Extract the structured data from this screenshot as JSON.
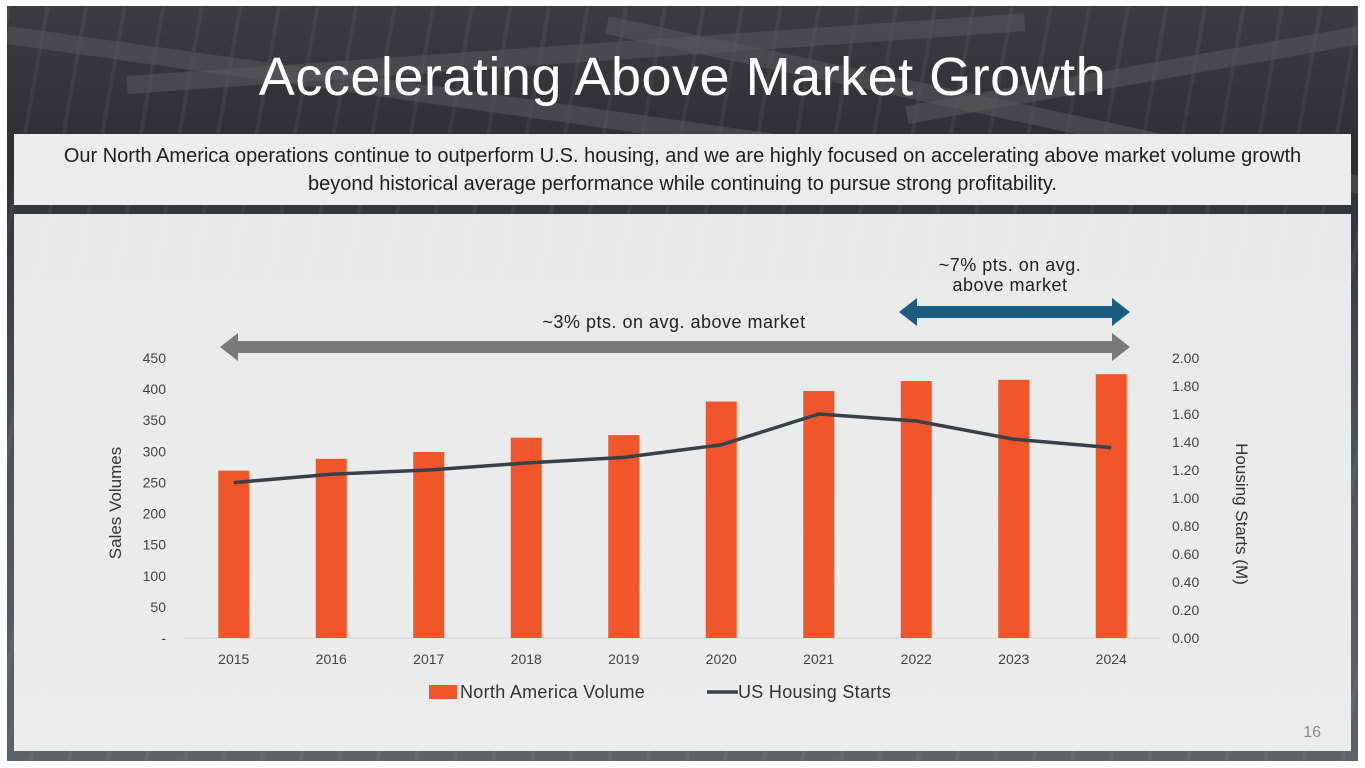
{
  "slide": {
    "title": "Accelerating Above Market Growth",
    "subtitle": "Our North America operations continue to outperform U.S. housing, and we are highly focused on accelerating above market volume growth beyond historical average performance while continuing to pursue strong profitability.",
    "page_number": "16"
  },
  "colors": {
    "bar": "#f0562a",
    "line": "#3a4049",
    "gray_arrow": "#7a7a7a",
    "blue_arrow": "#1a5d80"
  },
  "annotations": {
    "long_arrow_label": "~3% pts. on avg. above market",
    "short_arrow_label_line1": "~7% pts. on avg.",
    "short_arrow_label_line2": "above market"
  },
  "chart_data": {
    "type": "bar",
    "categories": [
      "2015",
      "2016",
      "2017",
      "2018",
      "2019",
      "2020",
      "2021",
      "2022",
      "2023",
      "2024"
    ],
    "series": [
      {
        "name": "North America Volume",
        "type": "bar",
        "axis": "left",
        "values": [
          269,
          288,
          299,
          322,
          326,
          380,
          397,
          413,
          415,
          424
        ]
      },
      {
        "name": "US Housing Starts",
        "type": "line",
        "axis": "right",
        "values": [
          1.11,
          1.17,
          1.2,
          1.25,
          1.29,
          1.38,
          1.6,
          1.55,
          1.42,
          1.36
        ]
      }
    ],
    "ylabel": "Sales Volumes",
    "y2label": "Housing Starts (M)",
    "ylim": [
      0,
      450
    ],
    "y2lim": [
      0,
      2.0
    ],
    "yticks": [
      "-",
      "50",
      "100",
      "150",
      "200",
      "250",
      "300",
      "350",
      "400",
      "450"
    ],
    "y2ticks": [
      "0.00",
      "0.20",
      "0.40",
      "0.60",
      "0.80",
      "1.00",
      "1.20",
      "1.40",
      "1.60",
      "1.80",
      "2.00"
    ],
    "legend": [
      "North America Volume",
      "US Housing Starts"
    ],
    "legend_position": "bottom",
    "grid": false
  }
}
